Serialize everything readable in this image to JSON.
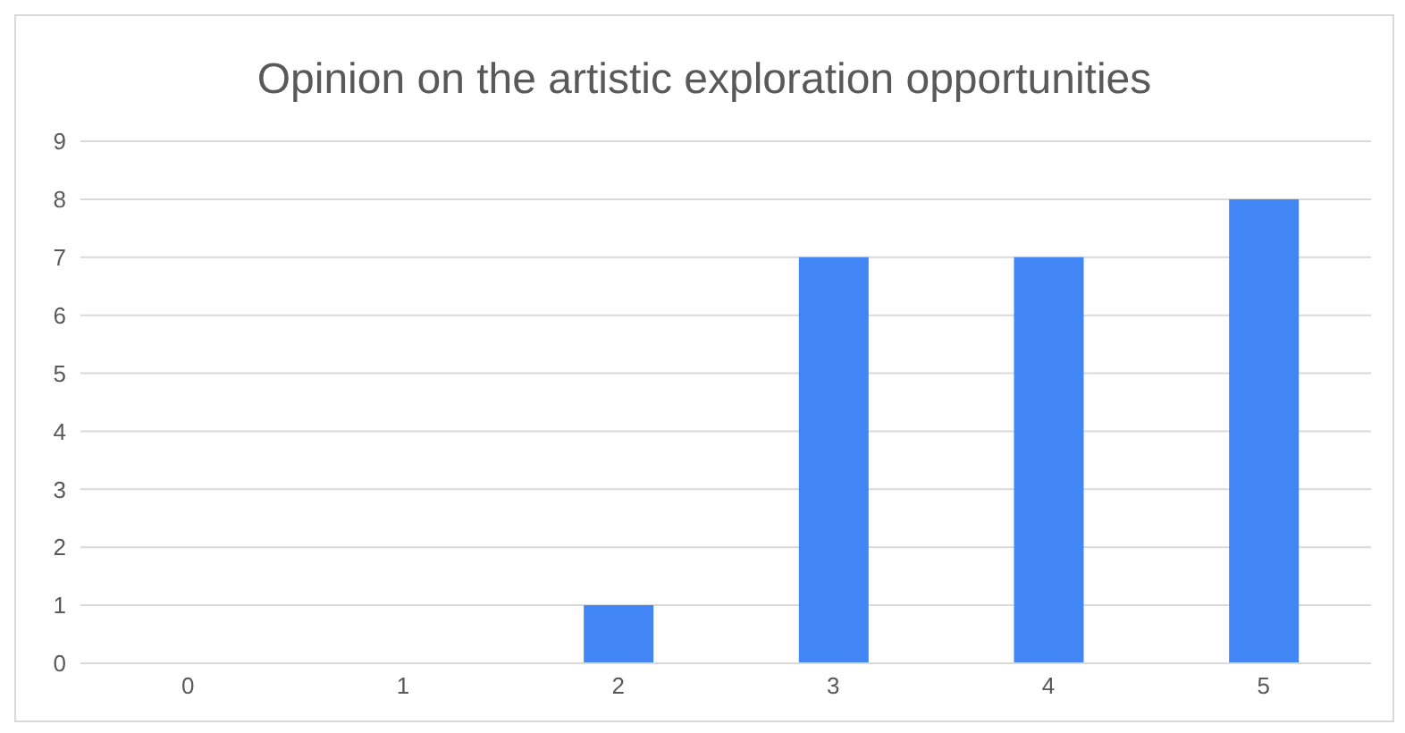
{
  "chart_data": {
    "type": "bar",
    "title": "Opinion on the artistic exploration opportunities",
    "categories": [
      "0",
      "1",
      "2",
      "3",
      "4",
      "5"
    ],
    "values": [
      0,
      0,
      1,
      7,
      7,
      8
    ],
    "color": "#4285f4",
    "ylim": [
      0,
      9
    ],
    "yticks": [
      0,
      1,
      2,
      3,
      4,
      5,
      6,
      7,
      8,
      9
    ],
    "grid": "y"
  }
}
